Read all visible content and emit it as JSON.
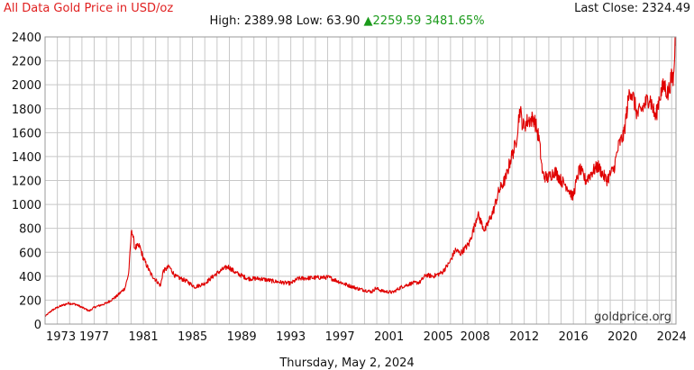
{
  "header": {
    "title": "All Data Gold Price in USD/oz",
    "last_close_label": "Last Close:",
    "last_close_value": "2324.49",
    "high_label": "High:",
    "high_value": "2389.98",
    "low_label": "Low:",
    "low_value": "63.90",
    "change_arrow": "▲",
    "change_value": "2259.59",
    "change_percent": "3481.65%"
  },
  "footer": {
    "date": "Thursday, May 2, 2024"
  },
  "watermark": "goldprice.org",
  "colors": {
    "line": "#e00000",
    "grid": "#c8c8c8",
    "title": "#e02020",
    "change": "#1a9a1a"
  },
  "chart_data": {
    "type": "line",
    "title": "All Data Gold Price in USD/oz",
    "xlabel": "",
    "ylabel": "",
    "xlim": [
      1973,
      2024.35
    ],
    "ylim": [
      0,
      2400
    ],
    "x_ticks": [
      1973,
      1977,
      1981,
      1985,
      1989,
      1993,
      1997,
      2001,
      2005,
      2008,
      2012,
      2016,
      2020,
      2024
    ],
    "y_ticks": [
      0,
      200,
      400,
      600,
      800,
      1000,
      1200,
      1400,
      1600,
      1800,
      2000,
      2200,
      2400
    ],
    "grid": true,
    "series": [
      {
        "name": "",
        "x": [
          1973.0,
          1973.5,
          1974.0,
          1974.9,
          1975.5,
          1976.6,
          1977.0,
          1978.0,
          1978.8,
          1979.5,
          1979.8,
          1980.05,
          1980.3,
          1980.7,
          1981.0,
          1981.6,
          1982.4,
          1982.6,
          1983.1,
          1983.6,
          1984.5,
          1985.2,
          1986.0,
          1986.8,
          1987.5,
          1987.9,
          1988.5,
          1989.5,
          1990.5,
          1991.5,
          1992.5,
          1993.0,
          1993.6,
          1994.5,
          1995.5,
          1996.1,
          1996.8,
          1997.5,
          1998.5,
          1999.6,
          1999.9,
          2000.5,
          2001.3,
          2002.0,
          2002.8,
          2003.5,
          2004.0,
          2004.6,
          2005.3,
          2005.9,
          2006.4,
          2006.8,
          2007.5,
          2007.9,
          2008.2,
          2008.8,
          2009.5,
          2009.9,
          2010.5,
          2010.9,
          2011.3,
          2011.65,
          2011.9,
          2012.3,
          2012.8,
          2013.2,
          2013.5,
          2013.9,
          2014.5,
          2015.0,
          2015.5,
          2015.95,
          2016.5,
          2017.0,
          2017.6,
          2018.0,
          2018.7,
          2019.3,
          2019.7,
          2020.1,
          2020.6,
          2020.9,
          2021.2,
          2021.6,
          2022.2,
          2022.7,
          2023.0,
          2023.4,
          2023.7,
          2023.95,
          2024.15,
          2024.28,
          2024.33
        ],
        "values": [
          64,
          110,
          140,
          175,
          165,
          110,
          140,
          175,
          230,
          300,
          420,
          800,
          640,
          650,
          550,
          420,
          320,
          440,
          480,
          400,
          360,
          310,
          340,
          410,
          460,
          480,
          430,
          380,
          380,
          360,
          345,
          340,
          380,
          385,
          390,
          390,
          360,
          330,
          295,
          270,
          300,
          275,
          265,
          310,
          340,
          350,
          410,
          400,
          430,
          510,
          620,
          590,
          670,
          800,
          920,
          780,
          950,
          1100,
          1220,
          1380,
          1500,
          1800,
          1650,
          1700,
          1720,
          1550,
          1250,
          1220,
          1280,
          1200,
          1150,
          1060,
          1300,
          1200,
          1280,
          1320,
          1200,
          1300,
          1500,
          1580,
          1970,
          1880,
          1750,
          1800,
          1900,
          1720,
          1900,
          2000,
          1920,
          2050,
          2050,
          2350,
          2324.49
        ]
      }
    ]
  }
}
